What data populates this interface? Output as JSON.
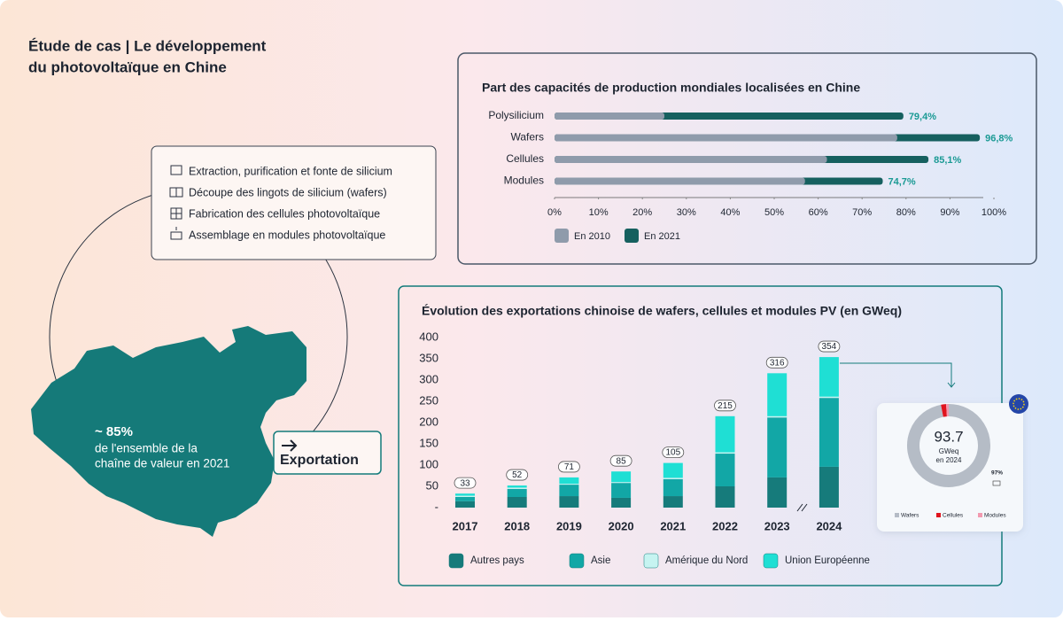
{
  "title": [
    "Étude de cas | Le développement",
    "du photovoltaïque en Chine"
  ],
  "steps": [
    "Extraction, purification et fonte de silicium",
    "Découpe des lingots de silicium (wafers)",
    "Fabrication des cellules photovoltaïque",
    "Assemblage en modules photovoltaïque"
  ],
  "map_label": {
    "value": "~ 85%",
    "text": [
      "de l'ensemble de la",
      "chaîne de valeur en 2021"
    ]
  },
  "export_label": "Exportation",
  "chart_data": [
    {
      "type": "hbar",
      "title": "Part des capacités de production mondiales localisées en Chine",
      "categories": [
        "Polysilicium",
        "Wafers",
        "Cellules",
        "Modules"
      ],
      "series": [
        {
          "name": "En 2010",
          "color": "#8f9bab",
          "values": [
            25,
            78,
            62,
            57
          ]
        },
        {
          "name": "En 2021",
          "color": "#16605f",
          "values": [
            79.4,
            96.8,
            85.1,
            74.7
          ],
          "value_labels": [
            "79,4%",
            "96,8%",
            "85,1%",
            "74,7%"
          ]
        }
      ],
      "xlim": [
        0,
        100
      ],
      "xticks": [
        {
          "value": 0,
          "label": "0%"
        },
        {
          "value": 10,
          "label": "10%"
        },
        {
          "value": 20,
          "label": "20%"
        },
        {
          "value": 30,
          "label": "30%"
        },
        {
          "value": 40,
          "label": "40%"
        },
        {
          "value": 50,
          "label": "50%"
        },
        {
          "value": 60,
          "label": "60%"
        },
        {
          "value": 70,
          "label": "70%"
        },
        {
          "value": 80,
          "label": "80%"
        },
        {
          "value": 90,
          "label": "90%"
        },
        {
          "value": 100,
          "label": "100%"
        }
      ],
      "legend": "bottom-left"
    },
    {
      "type": "stacked_bar",
      "title": "Évolution des exportations chinoise de wafers, cellules et modules PV (en GWeq)",
      "categories": [
        "2017",
        "2018",
        "2019",
        "2020",
        "2021",
        "2022",
        "2023",
        "2024"
      ],
      "series": [
        {
          "name": "Autres pays",
          "color": "#167b7b",
          "values": [
            15,
            25,
            27,
            23,
            27,
            50,
            71,
            96
          ]
        },
        {
          "name": "Asie",
          "color": "#12a7a6",
          "values": [
            10,
            19,
            27,
            35,
            40,
            77,
            141,
            162
          ]
        },
        {
          "name": "Amérique du Nord",
          "color": "#c6f4f1",
          "values": [
            3,
            3,
            2,
            2,
            3,
            3,
            3,
            3
          ]
        },
        {
          "name": "Union Européenne",
          "color": "#1fdfd4",
          "values": [
            5,
            5,
            15,
            25,
            35,
            85,
            101,
            93
          ]
        }
      ],
      "totals": [
        33,
        52,
        71,
        85,
        105,
        215,
        316,
        354
      ],
      "ylim": [
        0,
        400
      ],
      "yticks": [
        {
          "value": 0,
          "label": "-"
        },
        50,
        100,
        150,
        200,
        250,
        300,
        350,
        400
      ],
      "legend": "bottom"
    },
    {
      "type": "donut",
      "center_value": 93.7,
      "center_text": [
        "GWeq",
        "en 2024"
      ],
      "annotation": "97%",
      "categories": [
        "Wafers",
        "Cellules",
        "Modules"
      ],
      "values": [
        97,
        2,
        1
      ],
      "colors": [
        "#b5bcc6",
        "#e0141e",
        "#f29ab0"
      ]
    }
  ]
}
